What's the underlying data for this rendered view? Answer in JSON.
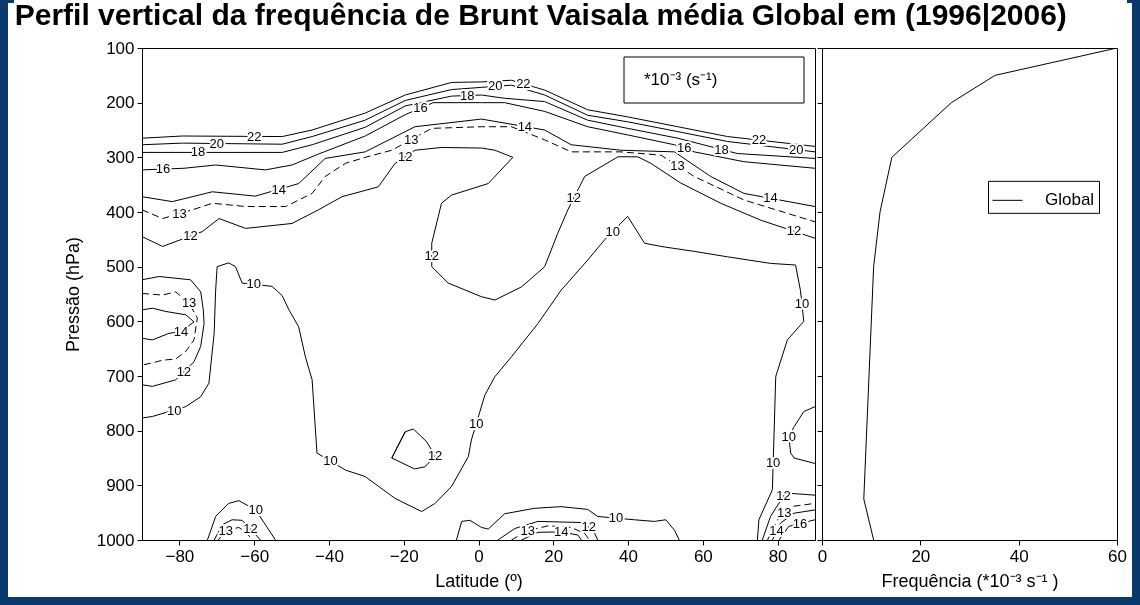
{
  "chart_data": [
    {
      "type": "line",
      "title": "Perfil vertical da frequência de Brunt Vaisala média Global em (1996|2006)",
      "xlabel": "Latitude (º)",
      "ylabel": "Pressão (hPa)",
      "xlim": [
        -90,
        90
      ],
      "xticks": [
        -80,
        -60,
        -40,
        -20,
        0,
        20,
        40,
        60,
        80
      ],
      "ylim": [
        1000,
        100
      ],
      "yticks": [
        100,
        200,
        300,
        400,
        500,
        600,
        700,
        800,
        900,
        1000
      ],
      "series": [
        {
          "color": "#000000",
          "line_style": "solid",
          "x": [
            -90,
            -79.2,
            -52.5,
            -44.5,
            -30.3,
            -19.6,
            -7.2,
            0.8,
            8.8,
            17.7,
            29.2,
            39.9,
            53.3,
            66.6,
            90
          ],
          "values": [
            265,
            261,
            262,
            250,
            219,
            186,
            163,
            162,
            159,
            177,
            213,
            226,
            244,
            262,
            280
          ]
        },
        {
          "color": "#000000",
          "line_style": "solid",
          "x": [
            -90,
            -79.2,
            -52.5,
            -44.5,
            -30.3,
            -19.6,
            -7.2,
            0.8,
            8.8,
            17.7,
            29.2,
            39.9,
            53.3,
            66.6,
            90
          ],
          "values": [
            277,
            274,
            276,
            262,
            232,
            196,
            176,
            172,
            168,
            186,
            223,
            235,
            253,
            271,
            290
          ]
        },
        {
          "color": "#000000",
          "line_style": "solid",
          "x": [
            -90,
            -52.5,
            -44.5,
            -30.3,
            -19.6,
            -7.2,
            0.8,
            7,
            17.7,
            29.2,
            39.9,
            53.3,
            69.2,
            90
          ],
          "values": [
            291,
            291,
            277,
            245,
            206,
            188,
            186,
            192,
            198,
            232,
            247,
            265,
            293,
            302
          ]
        },
        {
          "color": "#000000",
          "line_style": "solid",
          "x": [
            -90,
            -78.8,
            -70.3,
            -57,
            -49.9,
            -42.8,
            -30.3,
            -19.6,
            -12.1,
            0.8,
            7,
            17.7,
            29.2,
            39.9,
            52.4,
            57.7,
            71,
            90
          ],
          "values": [
            323,
            320,
            314,
            323,
            314,
            294,
            261,
            222,
            200,
            200,
            200,
            216,
            244,
            259,
            277,
            290,
            308,
            320
          ]
        },
        {
          "color": "#000000",
          "line_style": "solid",
          "x": [
            -90,
            -81.9,
            -71.2,
            -59.7,
            -48.1,
            -41,
            -30.3,
            -17,
            0.8,
            17.7,
            24.8,
            38.1,
            52.4,
            62.1,
            71,
            90
          ],
          "values": [
            372,
            381,
            363,
            371,
            348,
            302,
            290,
            244,
            230,
            250,
            277,
            287,
            290,
            335,
            366,
            390
          ]
        },
        {
          "color": "#000000",
          "line_style": "dashed",
          "x": [
            -90,
            -84.5,
            -76.5,
            -71.2,
            -62.3,
            -51.6,
            -44.5,
            -41,
            -35.6,
            -30.3,
            -23.2,
            -12.5,
            0.8,
            8.8,
            17.7,
            24.8,
            38.1,
            48.8,
            57.7,
            71,
            90
          ],
          "values": [
            396,
            412,
            396,
            384,
            390,
            390,
            366,
            335,
            311,
            300,
            287,
            247,
            244,
            244,
            268,
            290,
            290,
            296,
            335,
            378,
            418
          ]
        },
        {
          "color": "#000000",
          "line_style": "solid",
          "x": [
            -90,
            -84.5,
            -73.9,
            -69.4,
            -62.3,
            -49.9,
            -42.8,
            -36.5,
            -26.8,
            -22.3,
            -17,
            -9.9,
            0.8,
            4.4,
            9.2,
            2.6,
            -7.2,
            -9.9,
            -12.5,
            -12.5,
            -8.1,
            0.8,
            4.4,
            11.5,
            17.7,
            21.2,
            23.9,
            28.4,
            37.3,
            42.6,
            46.1,
            54.1,
            64.8,
            75.5,
            90
          ],
          "values": [
            445,
            463,
            436,
            412,
            430,
            421,
            396,
            372,
            354,
            311,
            287,
            282,
            283,
            287,
            300,
            348,
            369,
            384,
            457,
            500,
            530,
            555,
            561,
            537,
            500,
            439,
            396,
            335,
            299,
            299,
            311,
            347,
            384,
            415,
            448
          ]
        },
        {
          "color": "#000000",
          "line_style": "solid",
          "x": [
            -90,
            -87.2,
            -78.3,
            -74.3,
            -72.1,
            -70.7,
            -70.3,
            -69.9,
            -66.8,
            -65,
            -63.2,
            -55.2,
            -52.5,
            -50.7,
            -48.1,
            -46.3,
            -44.5,
            -43.2,
            -35.6,
            -30.3,
            -22.3,
            -15.2,
            -11.6,
            -7.2,
            -2.7,
            -1.9,
            1.7,
            4.4,
            8.8,
            15.9,
            22.1,
            29.2,
            33.7,
            39.9,
            44.4,
            48.8,
            57.7,
            66.6,
            78.1,
            84.8,
            86.1,
            87,
            82.6,
            79.5,
            78.6,
            75,
            74.6
          ],
          "values": [
            777,
            774,
            756,
            738,
            713,
            622,
            543,
            500,
            493,
            500,
            530,
            536,
            553,
            579,
            610,
            665,
            707,
            841,
            872,
            884,
            924,
            948,
            933,
            902,
            847,
            817,
            735,
            701,
            665,
            604,
            543,
            488,
            451,
            408,
            457,
            463,
            472,
            482,
            494,
            497,
            543,
            600,
            634,
            701,
            908,
            963,
            1000
          ]
        },
        {
          "color": "#000000",
          "line_style": "solid",
          "x": [
            -90,
            -85.4,
            -77,
            -74.3,
            -73.6,
            -73.4,
            -74.3,
            -76.1,
            -81,
            -87.2,
            -90
          ],
          "values": [
            524,
            518,
            524,
            546,
            579,
            604,
            646,
            674,
            707,
            719,
            716
          ]
        },
        {
          "color": "#000000",
          "line_style": "dashed",
          "x": [
            -90,
            -84.5,
            -81,
            -77.4,
            -75.2,
            -76.1,
            -78.3,
            -81,
            -84.5,
            -87.2,
            -90
          ],
          "values": [
            549,
            552,
            546,
            567,
            594,
            634,
            655,
            669,
            671,
            676,
            680
          ]
        },
        {
          "color": "#000000",
          "line_style": "solid",
          "x": [
            -90,
            -87.2,
            -83.6,
            -78.3,
            -76.1,
            -79.6,
            -82.8,
            -87.2,
            -90
          ],
          "values": [
            579,
            576,
            582,
            588,
            601,
            619,
            622,
            634,
            631
          ]
        },
        {
          "color": "#000000",
          "line_style": "solid",
          "x": [
            -72.5,
            -70.3,
            -66.8,
            -64.1,
            -59.6,
            -54.3
          ],
          "values": [
            1000,
            957,
            933,
            928,
            945,
            1000
          ]
        },
        {
          "color": "#000000",
          "line_style": "solid",
          "x": [
            -70.7,
            -68.5,
            -65.9,
            -63.2,
            -58.3
          ],
          "values": [
            1000,
            972,
            963,
            964,
            1000
          ]
        },
        {
          "color": "#000000",
          "line_style": "dashed",
          "x": [
            -69.6,
            -67.6,
            -64.1,
            -61.9,
            -60.5
          ],
          "values": [
            1000,
            983,
            977,
            988,
            1000
          ]
        },
        {
          "color": "#000000",
          "line_style": "solid",
          "x": [
            -23.2,
            -19.6,
            -17.4,
            -13.9,
            -11.6,
            -14.3,
            -17.1,
            -23.2,
            -19.6
          ],
          "values": [
            850,
            802,
            797,
            820,
            846,
            866,
            870,
            850,
            802
          ]
        },
        {
          "color": "#000000",
          "line_style": "solid",
          "x": [
            -5.9,
            -4.5,
            -2.3,
            0.8,
            2.6,
            7,
            15,
            22.1,
            29.2,
            31.9,
            36.8,
            41.7,
            47,
            50.1,
            52.4,
            53.7
          ],
          "values": [
            1000,
            966,
            964,
            977,
            980,
            952,
            942,
            939,
            944,
            957,
            960,
            963,
            966,
            963,
            982,
            1000
          ]
        },
        {
          "color": "#000000",
          "line_style": "solid",
          "x": [
            5.2,
            9.7,
            15.9,
            27.5,
            30.6,
            31.9
          ],
          "values": [
            1000,
            979,
            966,
            968,
            981,
            1000
          ]
        },
        {
          "color": "#000000",
          "line_style": "dashed",
          "x": [
            8.8,
            13.2,
            18.6,
            24.8,
            28.4,
            29.7
          ],
          "values": [
            1000,
            983,
            974,
            977,
            988,
            1000
          ]
        },
        {
          "color": "#000000",
          "line_style": "solid",
          "x": [
            11.5,
            15.9,
            22.1,
            26.6,
            27.5
          ],
          "values": [
            1000,
            986,
            985,
            991,
            1000
          ]
        },
        {
          "color": "#000000",
          "line_style": "solid",
          "x": [
            90,
            87,
            84.4,
            83,
            83.5,
            84.4,
            90
          ],
          "values": [
            756,
            765,
            793,
            811,
            841,
            850,
            860
          ]
        },
        {
          "color": "#000000",
          "line_style": "solid",
          "x": [
            75.9,
            78.1,
            82.1,
            90
          ],
          "values": [
            1000,
            957,
            914,
            918
          ]
        },
        {
          "color": "#000000",
          "line_style": "dashed",
          "x": [
            77.3,
            80,
            83.5,
            90
          ],
          "values": [
            1000,
            963,
            939,
            933
          ]
        },
        {
          "color": "#000000",
          "line_style": "solid",
          "x": [
            78.6,
            80.8,
            84.4,
            90
          ],
          "values": [
            1000,
            969,
            951,
            945
          ]
        },
        {
          "color": "#000000",
          "line_style": "solid",
          "x": [
            80.4,
            83,
            90
          ],
          "values": [
            1000,
            975,
            963
          ]
        }
      ],
      "annotations": [
        "*10⁻³ (s⁻¹)",
        {
          "text": "22",
          "x": -60,
          "y": 262
        },
        {
          "text": "20",
          "x": -70,
          "y": 275
        },
        {
          "text": "18",
          "x": -75,
          "y": 291
        },
        {
          "text": "16",
          "x": -84.4,
          "y": 321.5
        },
        {
          "text": "14",
          "x": -53.4,
          "y": 359
        },
        {
          "text": "13",
          "x": -80,
          "y": 403
        },
        {
          "text": "12",
          "x": -77,
          "y": 444
        },
        {
          "text": "16",
          "x": -15.5,
          "y": 210
        },
        {
          "text": "18",
          "x": -3,
          "y": 187
        },
        {
          "text": "20",
          "x": 4.5,
          "y": 170
        },
        {
          "text": "22",
          "x": 12,
          "y": 165
        },
        {
          "text": "14",
          "x": 12.4,
          "y": 244
        },
        {
          "text": "13",
          "x": -18,
          "y": 268
        },
        {
          "text": "12",
          "x": -19.6,
          "y": 299
        },
        {
          "text": "16",
          "x": 55,
          "y": 283
        },
        {
          "text": "18",
          "x": 65,
          "y": 286
        },
        {
          "text": "22",
          "x": 75,
          "y": 268
        },
        {
          "text": "20",
          "x": 85,
          "y": 286
        },
        {
          "text": "13",
          "x": 53.2,
          "y": 316
        },
        {
          "text": "14",
          "x": 78.1,
          "y": 375
        },
        {
          "text": "12",
          "x": 84.4,
          "y": 435
        },
        {
          "text": "12",
          "x": -12.5,
          "y": 480
        },
        {
          "text": "12",
          "x": 25.5,
          "y": 374
        },
        {
          "text": "10",
          "x": -60.1,
          "y": 532
        },
        {
          "text": "10",
          "x": -81.4,
          "y": 764
        },
        {
          "text": "13",
          "x": -77.4,
          "y": 567
        },
        {
          "text": "14",
          "x": -79.6,
          "y": 619
        },
        {
          "text": "12",
          "x": -78.8,
          "y": 692
        },
        {
          "text": "10",
          "x": -39.6,
          "y": 856
        },
        {
          "text": "12",
          "x": -11.6,
          "y": 846
        },
        {
          "text": "10",
          "x": -0.6,
          "y": 787
        },
        {
          "text": "10",
          "x": 35.9,
          "y": 436
        },
        {
          "text": "10",
          "x": 86.5,
          "y": 568
        },
        {
          "text": "10",
          "x": 83,
          "y": 811
        },
        {
          "text": "10",
          "x": 78.8,
          "y": 860
        },
        {
          "text": "12",
          "x": 81.6,
          "y": 919
        },
        {
          "text": "13",
          "x": 81.75,
          "y": 951
        },
        {
          "text": "14",
          "x": 79.7,
          "y": 984
        },
        {
          "text": "16",
          "x": 86,
          "y": 970
        },
        {
          "text": "10",
          "x": -59.6,
          "y": 945
        },
        {
          "text": "12",
          "x": -61,
          "y": 980
        },
        {
          "text": "13",
          "x": -67.6,
          "y": 983
        },
        {
          "text": "10",
          "x": 36.8,
          "y": 960
        },
        {
          "text": "12",
          "x": 29.5,
          "y": 976
        },
        {
          "text": "13",
          "x": 13.2,
          "y": 983
        },
        {
          "text": "14",
          "x": 22.1,
          "y": 985
        }
      ]
    },
    {
      "type": "line",
      "xlabel": "Frequência (*10⁻³ s⁻¹ )",
      "xlim": [
        0,
        60
      ],
      "xticks": [
        0,
        20,
        40,
        60
      ],
      "ylim": [
        1000,
        100
      ],
      "yticks": [
        100,
        200,
        300,
        400,
        500,
        600,
        700,
        800,
        900,
        1000
      ],
      "tick_labels": "x",
      "legend": "top right",
      "series": [
        {
          "name": "Global",
          "color": "#000000",
          "x": [
            10.5,
            8.5,
            10.5,
            11.8,
            14.2,
            26.3,
            35.2,
            60
          ],
          "values": [
            1000,
            925,
            500,
            400,
            300,
            200,
            150,
            100
          ]
        }
      ]
    }
  ]
}
